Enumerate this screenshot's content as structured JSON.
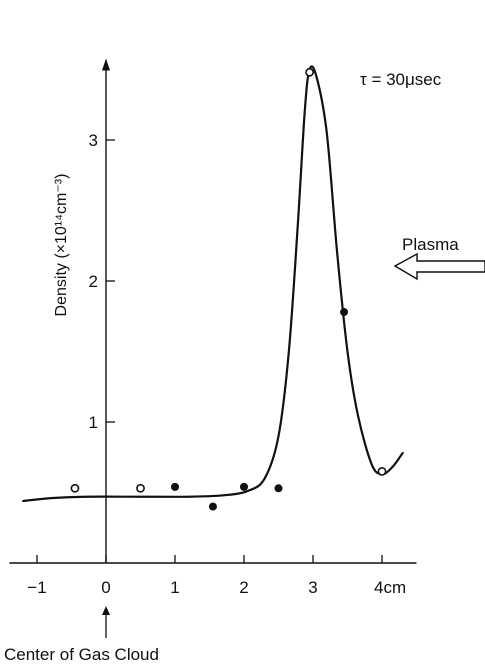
{
  "chart_data": {
    "type": "scatter",
    "ylabel": "Density (×10¹⁴cm⁻³)",
    "xlim": [
      -1.4,
      4.5
    ],
    "ylim": [
      0,
      3.55
    ],
    "x_ticks": [
      -1,
      0,
      1,
      2,
      3,
      4
    ],
    "x_tick_labels": [
      "−1",
      "0",
      "1",
      "2",
      "3",
      "4cm"
    ],
    "y_ticks": [
      1,
      2,
      3
    ],
    "y_tick_labels": [
      "1",
      "2",
      "3"
    ],
    "grid": false,
    "series": [
      {
        "kind": "points-open",
        "points": [
          [
            -0.45,
            0.53
          ],
          [
            0.5,
            0.53
          ],
          [
            2.95,
            3.48
          ],
          [
            4.0,
            0.65
          ]
        ]
      },
      {
        "kind": "points-filled",
        "points": [
          [
            1.0,
            0.54
          ],
          [
            1.55,
            0.4
          ],
          [
            2.0,
            0.54
          ],
          [
            2.5,
            0.53
          ],
          [
            3.45,
            1.78
          ]
        ]
      },
      {
        "kind": "fitted-curve",
        "points": [
          [
            -1.2,
            0.44
          ],
          [
            -0.8,
            0.46
          ],
          [
            -0.3,
            0.47
          ],
          [
            0.5,
            0.47
          ],
          [
            1.2,
            0.47
          ],
          [
            1.7,
            0.48
          ],
          [
            2.05,
            0.51
          ],
          [
            2.3,
            0.6
          ],
          [
            2.5,
            0.9
          ],
          [
            2.65,
            1.5
          ],
          [
            2.78,
            2.4
          ],
          [
            2.88,
            3.2
          ],
          [
            2.95,
            3.5
          ],
          [
            3.05,
            3.45
          ],
          [
            3.2,
            3.05
          ],
          [
            3.35,
            2.2
          ],
          [
            3.5,
            1.5
          ],
          [
            3.65,
            1.05
          ],
          [
            3.85,
            0.7
          ],
          [
            4.0,
            0.63
          ],
          [
            4.15,
            0.68
          ],
          [
            4.3,
            0.78
          ]
        ]
      }
    ],
    "annotations": {
      "tau": "τ = 30μsec",
      "plasma": "Plasma",
      "center": "Center of Gas Cloud"
    }
  }
}
